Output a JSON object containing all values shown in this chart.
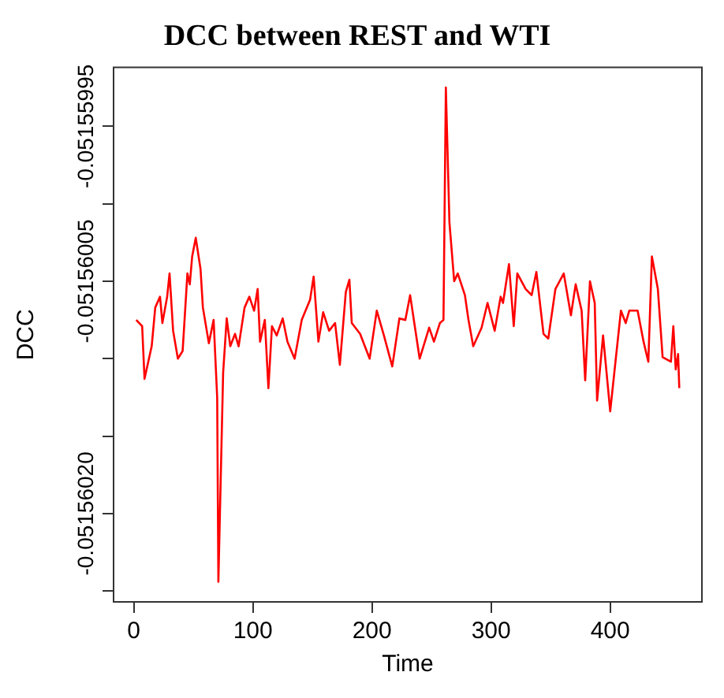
{
  "chart_data": {
    "type": "line",
    "title": "DCC between REST and WTI",
    "xlabel": "Time",
    "ylabel": "DCC",
    "marker": "none",
    "line_style": "solid",
    "grid": false,
    "legend": false,
    "xlim": [
      -17,
      477
    ],
    "xticks": [
      0,
      100,
      200,
      300,
      400
    ],
    "ylim": [
      -0.051560257,
      -0.051559912
    ],
    "yticks": [
      -0.05155995,
      {
        "value": -0.05156,
        "label": null
      },
      -0.05156005,
      {
        "value": -0.0515601,
        "label": null
      },
      {
        "value": -0.05156015,
        "label": null
      },
      {
        "value": -0.0515602,
        "label": "-0.05156020"
      },
      {
        "value": -0.05156025,
        "label": null
      }
    ],
    "series": [
      {
        "color": "#ff0000",
        "x": [
          2,
          7,
          9,
          15,
          18,
          22,
          24,
          28,
          30,
          33,
          37,
          41,
          45,
          47,
          49,
          52,
          56,
          58,
          63,
          67,
          70,
          71,
          75,
          78,
          81,
          85,
          88,
          93,
          97,
          101,
          104,
          106,
          110,
          113,
          116,
          120,
          125,
          129,
          135,
          141,
          148,
          151,
          155,
          159,
          164,
          169,
          173,
          178,
          181,
          183,
          190,
          198,
          204,
          210,
          217,
          223,
          228,
          232,
          240,
          248,
          252,
          257,
          260,
          262,
          265,
          269,
          272,
          278,
          281,
          285,
          292,
          297,
          303,
          308,
          310,
          315,
          319,
          322,
          329,
          334,
          338,
          344,
          348,
          354,
          361,
          367,
          371,
          376,
          379,
          383,
          387,
          389,
          394,
          400,
          404,
          409,
          413,
          416,
          423,
          428,
          432,
          435,
          440,
          444,
          451,
          453,
          455,
          457,
          458
        ],
        "values": [
          -0.051560075,
          -0.051560079,
          -0.051560113,
          -0.051560092,
          -0.051560067,
          -0.05156006,
          -0.051560077,
          -0.05156006,
          -0.051560045,
          -0.051560082,
          -0.0515601,
          -0.051560095,
          -0.051560045,
          -0.051560052,
          -0.051560034,
          -0.051560022,
          -0.051560042,
          -0.051560067,
          -0.05156009,
          -0.051560075,
          -0.051560125,
          -0.051560244,
          -0.051560109,
          -0.051560074,
          -0.051560092,
          -0.051560084,
          -0.051560092,
          -0.051560067,
          -0.05156006,
          -0.051560069,
          -0.051560055,
          -0.051560089,
          -0.051560075,
          -0.051560119,
          -0.051560079,
          -0.051560085,
          -0.051560074,
          -0.051560089,
          -0.0515601,
          -0.051560075,
          -0.051560062,
          -0.051560047,
          -0.051560089,
          -0.05156007,
          -0.051560082,
          -0.051560077,
          -0.051560104,
          -0.051560057,
          -0.051560049,
          -0.051560077,
          -0.051560084,
          -0.0515601,
          -0.051560069,
          -0.051560085,
          -0.051560105,
          -0.051560074,
          -0.051560075,
          -0.051560059,
          -0.0515601,
          -0.05156008,
          -0.051560089,
          -0.051560077,
          -0.051560075,
          -0.051559925,
          -0.051560012,
          -0.05156005,
          -0.051560045,
          -0.051560059,
          -0.051560075,
          -0.051560092,
          -0.05156008,
          -0.051560064,
          -0.051560082,
          -0.05156006,
          -0.051560064,
          -0.051560039,
          -0.051560079,
          -0.051560045,
          -0.051560055,
          -0.051560059,
          -0.051560044,
          -0.051560084,
          -0.051560087,
          -0.051560055,
          -0.051560045,
          -0.051560072,
          -0.051560052,
          -0.051560069,
          -0.051560114,
          -0.05156005,
          -0.051560064,
          -0.051560127,
          -0.051560085,
          -0.051560134,
          -0.051560105,
          -0.051560069,
          -0.051560077,
          -0.051560069,
          -0.051560069,
          -0.051560089,
          -0.051560102,
          -0.051560034,
          -0.051560055,
          -0.051560099,
          -0.051560102,
          -0.051560079,
          -0.051560107,
          -0.051560097,
          -0.051560119
        ]
      }
    ]
  }
}
